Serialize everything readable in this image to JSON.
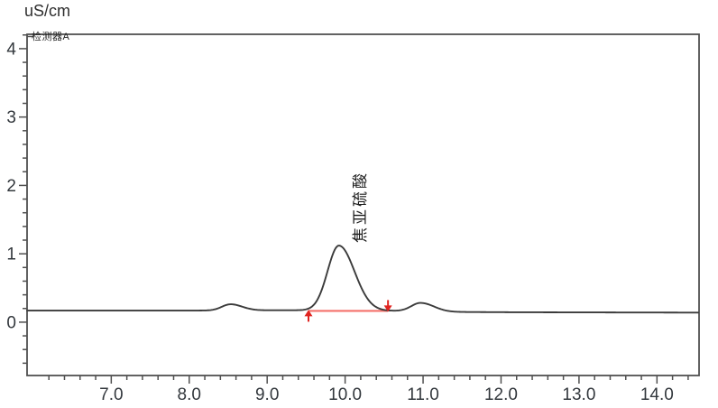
{
  "chart_data": {
    "type": "line",
    "title": "",
    "ylabel": "uS/cm",
    "xlabel": "",
    "detector_label": "检测器A",
    "grid": false,
    "legend": false,
    "x_range": [
      5.92,
      14.54
    ],
    "y_range": [
      -0.78,
      4.21
    ],
    "x_major_ticks": [
      7,
      8,
      9,
      10,
      11,
      12,
      13,
      14
    ],
    "x_tick_labels": [
      "7.0",
      "8.0",
      "9.0",
      "10.0",
      "11.0",
      "12.0",
      "13.0",
      "14.0"
    ],
    "x_minor_tick_step": 0.2,
    "x_minor_tick_range": [
      6.2,
      14.4
    ],
    "y_major_ticks": [
      0,
      1,
      2,
      3,
      4
    ],
    "y_tick_labels": [
      "0",
      "1",
      "2",
      "3",
      "4"
    ],
    "y_minor_tick_step": 0.2,
    "y_minor_tick_range": [
      -0.6,
      4.2
    ],
    "baseline_points": [
      [
        5.92,
        0.17
      ],
      [
        8.1,
        0.17
      ],
      [
        9.3,
        0.175
      ],
      [
        10.6,
        0.165
      ],
      [
        11.3,
        0.15
      ],
      [
        12.2,
        0.145
      ],
      [
        14.54,
        0.14
      ]
    ],
    "peaks": [
      {
        "name": "",
        "time": 8.53,
        "height": 0.09,
        "sigma_left": 0.11,
        "sigma_right": 0.15,
        "labeled": false
      },
      {
        "name": "焦亚硫酸",
        "time": 9.92,
        "height": 0.95,
        "sigma_left": 0.145,
        "sigma_right": 0.2,
        "labeled": true
      },
      {
        "name": "",
        "time": 10.97,
        "height": 0.125,
        "sigma_left": 0.12,
        "sigma_right": 0.17,
        "labeled": false
      }
    ],
    "integration_marker": {
      "start_time": 9.53,
      "end_time": 10.55,
      "level": 0.165
    },
    "colors": {
      "background": "#ffffff",
      "trace": "#3b3b3b",
      "axis": "#505050",
      "tick_label": "#33383d",
      "integration_line": "#f4716b",
      "integration_arrow": "#e02420",
      "peak_label": "#1c1c1c"
    }
  }
}
